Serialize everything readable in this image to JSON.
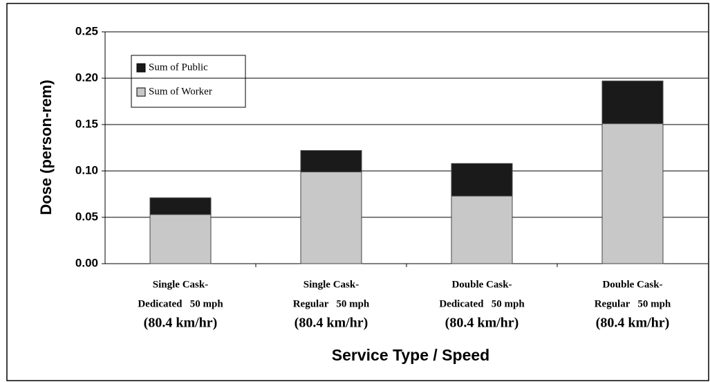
{
  "chart_data": {
    "type": "stacked_bar",
    "ylabel": "Dose (person-rem)",
    "xlabel": "Service Type / Speed",
    "categories": [
      [
        "Single Cask-",
        "Dedicated   50 mph",
        "(80.4 km/hr)"
      ],
      [
        "Single Cask-",
        "Regular   50 mph",
        "(80.4 km/hr)"
      ],
      [
        "Double Cask-",
        "Dedicated   50 mph",
        "(80.4 km/hr)"
      ],
      [
        "Double Cask-",
        "Regular   50 mph",
        "(80.4 km/hr)"
      ]
    ],
    "series": [
      {
        "name": "Sum of Worker",
        "color": "#c8c8c8",
        "values": [
          0.053,
          0.099,
          0.073,
          0.151
        ]
      },
      {
        "name": "Sum of Public",
        "color": "#1a1a1a",
        "values": [
          0.018,
          0.023,
          0.035,
          0.046
        ]
      }
    ],
    "ylim": [
      0,
      0.25
    ],
    "yticks": [
      {
        "value": 0,
        "label": "0.00"
      },
      0.05,
      {
        "value": 0.1,
        "label": "0.10"
      },
      0.15,
      {
        "value": 0.2,
        "label": "0.20"
      },
      0.25
    ],
    "grid": true
  }
}
